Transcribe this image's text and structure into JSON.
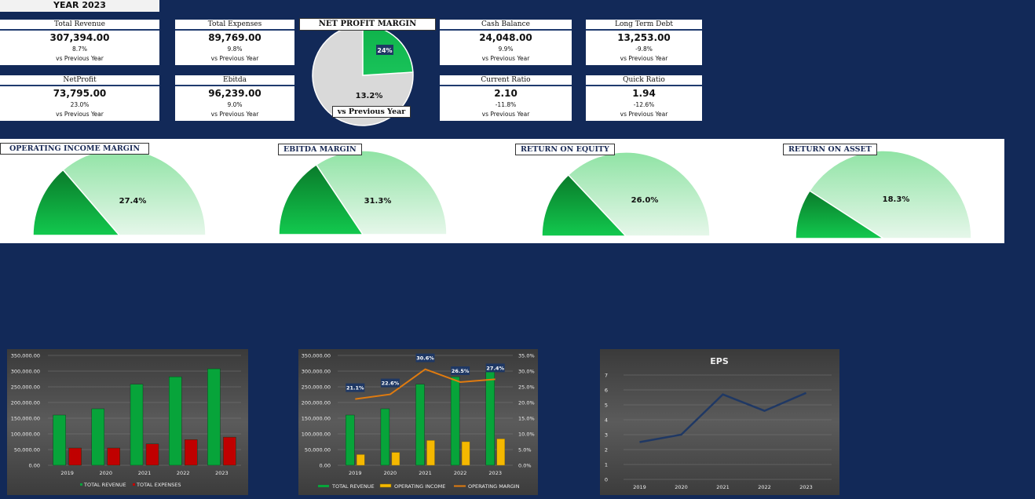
{
  "header": {
    "year_label": "YEAR 2023"
  },
  "kpis": [
    {
      "title": "Total Revenue",
      "value": "307,394.00",
      "change": "8.7%",
      "note": "vs Previous Year"
    },
    {
      "title": "Total Expenses",
      "value": "89,769.00",
      "change": "9.8%",
      "note": "vs Previous Year"
    },
    {
      "title": "Cash Balance",
      "value": "24,048.00",
      "change": "9.9%",
      "note": "vs Previous Year"
    },
    {
      "title": "Long Term Debt",
      "value": "13,253.00",
      "change": "-9.8%",
      "note": "vs Previous Year"
    },
    {
      "title": "NetProfit",
      "value": "73,795.00",
      "change": "23.0%",
      "note": "vs Previous Year"
    },
    {
      "title": "Ebitda",
      "value": "96,239.00",
      "change": "9.0%",
      "note": "vs Previous Year"
    },
    {
      "title": "Current Ratio",
      "value": "2.10",
      "change": "-11.8%",
      "note": "vs Previous Year"
    },
    {
      "title": "Quick Ratio",
      "value": "1.94",
      "change": "-12.6%",
      "note": "vs Previous Year"
    }
  ],
  "net_profit_margin": {
    "title": "NET PROFIT MARGIN",
    "slice_label": "24%",
    "change": "13.2%",
    "note": "vs Previous Year"
  },
  "gauges": [
    {
      "title": "OPERATING INCOME MARGIN",
      "value_label": "27.4%"
    },
    {
      "title": "EBITDA MARGIN",
      "value_label": "31.3%"
    },
    {
      "title": "RETURN ON EQUITY",
      "value_label": "26.0%"
    },
    {
      "title": "RETURN ON ASSET",
      "value_label": "18.3%"
    }
  ],
  "colors": {
    "background": "#122958",
    "green": "#07a43a",
    "red": "#c00000",
    "gold": "#f5b800",
    "orange": "#e07b0f",
    "navy": "#1f3864"
  },
  "chart_data": [
    {
      "type": "pie",
      "title": "NET PROFIT MARGIN",
      "slices": [
        {
          "label": "24%",
          "value": 24
        },
        {
          "label": "",
          "value": 76
        }
      ]
    },
    {
      "type": "pie",
      "title": "OPERATING INCOME MARGIN",
      "half": true,
      "value": 27.4,
      "value_label": "27.4%"
    },
    {
      "type": "pie",
      "title": "EBITDA MARGIN",
      "half": true,
      "value": 31.3,
      "value_label": "31.3%"
    },
    {
      "type": "pie",
      "title": "RETURN ON EQUITY",
      "half": true,
      "value": 26.0,
      "value_label": "26.0%"
    },
    {
      "type": "pie",
      "title": "RETURN ON ASSET",
      "half": true,
      "value": 18.3,
      "value_label": "18.3%"
    },
    {
      "type": "bar",
      "categories": [
        "2019",
        "2020",
        "2021",
        "2022",
        "2023"
      ],
      "series": [
        {
          "name": "TOTAL REVENUE",
          "values": [
            160000,
            180000,
            258000,
            282000,
            307394
          ]
        },
        {
          "name": "TOTAL EXPENSES",
          "values": [
            55000,
            55000,
            68000,
            82000,
            89769
          ]
        }
      ],
      "ylim": [
        0,
        350000
      ],
      "yticks": [
        "0.00",
        "50,000.00",
        "100,000.00",
        "150,000.00",
        "200,000.00",
        "250,000.00",
        "300,000.00",
        "350,000.00"
      ],
      "legend": "bottom"
    },
    {
      "type": "bar",
      "categories": [
        "2019",
        "2020",
        "2021",
        "2022",
        "2023"
      ],
      "series": [
        {
          "name": "TOTAL REVENUE",
          "values": [
            160000,
            180000,
            258000,
            282000,
            307394
          ]
        },
        {
          "name": "OPERATING INCOME",
          "values": [
            34000,
            41000,
            79000,
            75000,
            84000
          ]
        },
        {
          "name": "OPERATING MARGIN",
          "axis": "right",
          "values": [
            21.1,
            22.6,
            30.6,
            26.5,
            27.4
          ],
          "labels": [
            "21.1%",
            "22.6%",
            "30.6%",
            "26.5%",
            "27.4%"
          ]
        }
      ],
      "ylim": [
        0,
        350000
      ],
      "y2lim": [
        0,
        35
      ],
      "yticks": [
        "0.00",
        "50,000.00",
        "100,000.00",
        "150,000.00",
        "200,000.00",
        "250,000.00",
        "300,000.00",
        "350,000.00"
      ],
      "y2ticks": [
        "0.0%",
        "5.0%",
        "10.0%",
        "15.0%",
        "20.0%",
        "25.0%",
        "30.0%",
        "35.0%"
      ],
      "legend": "bottom"
    },
    {
      "type": "line",
      "title": "EPS",
      "categories": [
        "2019",
        "2020",
        "2021",
        "2022",
        "2023"
      ],
      "series": [
        {
          "name": "",
          "values": [
            2.5,
            3.0,
            5.7,
            4.6,
            5.8
          ]
        }
      ],
      "ylim": [
        0,
        7
      ],
      "yticks": [
        "0",
        "1",
        "2",
        "3",
        "4",
        "5",
        "6",
        "7"
      ]
    }
  ]
}
